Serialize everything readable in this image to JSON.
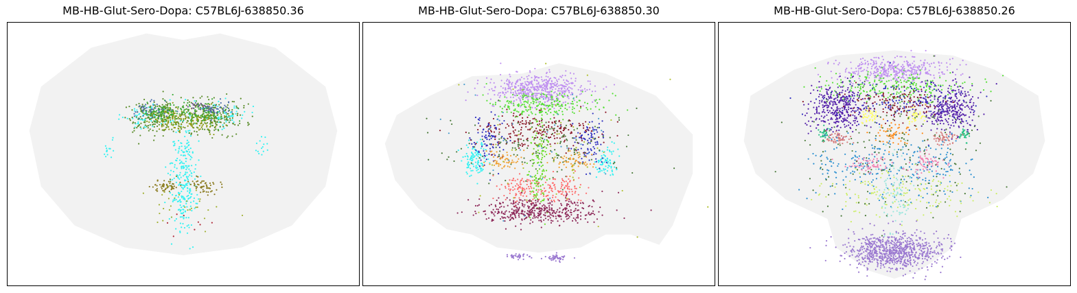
{
  "chart_data": [
    {
      "type": "scatter",
      "title": "MB-HB-Glut-Sero-Dopa: C57BL6J-638850.36",
      "background_color": "#f2f2f2",
      "xticks": [],
      "yticks": [],
      "outline": [
        [
          -0.92,
          0.18
        ],
        [
          -0.85,
          -0.25
        ],
        [
          -0.65,
          -0.55
        ],
        [
          -0.35,
          -0.72
        ],
        [
          0,
          -0.78
        ],
        [
          0.35,
          -0.72
        ],
        [
          0.65,
          -0.55
        ],
        [
          0.85,
          -0.25
        ],
        [
          0.92,
          0.18
        ],
        [
          0.85,
          0.52
        ],
        [
          0.55,
          0.82
        ],
        [
          0.22,
          0.93
        ],
        [
          0,
          0.88
        ],
        [
          -0.22,
          0.93
        ],
        [
          -0.55,
          0.82
        ],
        [
          -0.85,
          0.52
        ]
      ],
      "clusters": [
        {
          "color": "#33f2f2",
          "center": [
            0.0,
            -0.18
          ],
          "spread": [
            0.04,
            0.22
          ],
          "count": 280
        },
        {
          "color": "#33f2f2",
          "center": [
            -0.22,
            0.3
          ],
          "spread": [
            0.07,
            0.05
          ],
          "count": 60
        },
        {
          "color": "#33f2f2",
          "center": [
            0.24,
            0.3
          ],
          "spread": [
            0.07,
            0.05
          ],
          "count": 60
        },
        {
          "color": "#33f2f2",
          "center": [
            -0.45,
            0.04
          ],
          "spread": [
            0.02,
            0.04
          ],
          "count": 14
        },
        {
          "color": "#33f2f2",
          "center": [
            0.47,
            0.05
          ],
          "spread": [
            0.02,
            0.04
          ],
          "count": 14
        },
        {
          "color": "#5a8c2a",
          "center": [
            -0.16,
            0.29
          ],
          "spread": [
            0.09,
            0.07
          ],
          "count": 190
        },
        {
          "color": "#5a8c2a",
          "center": [
            0.17,
            0.29
          ],
          "spread": [
            0.09,
            0.07
          ],
          "count": 190
        },
        {
          "color": "#8c9a12",
          "center": [
            -0.08,
            0.27
          ],
          "spread": [
            0.06,
            0.05
          ],
          "count": 110
        },
        {
          "color": "#8c9a12",
          "center": [
            0.09,
            0.27
          ],
          "spread": [
            0.06,
            0.05
          ],
          "count": 110
        },
        {
          "color": "#3aaa35",
          "center": [
            -0.13,
            0.32
          ],
          "spread": [
            0.07,
            0.04
          ],
          "count": 90
        },
        {
          "color": "#3aaa35",
          "center": [
            0.13,
            0.32
          ],
          "spread": [
            0.07,
            0.04
          ],
          "count": 90
        },
        {
          "color": "#4d6faa",
          "center": [
            -0.2,
            0.34
          ],
          "spread": [
            0.05,
            0.03
          ],
          "count": 45
        },
        {
          "color": "#4d6faa",
          "center": [
            0.2,
            0.34
          ],
          "spread": [
            0.05,
            0.03
          ],
          "count": 45
        },
        {
          "color": "#6a4c93",
          "center": [
            0.1,
            0.37
          ],
          "spread": [
            0.03,
            0.015
          ],
          "count": 18
        },
        {
          "color": "#8a7a1e",
          "center": [
            -0.11,
            -0.25
          ],
          "spread": [
            0.05,
            0.03
          ],
          "count": 55
        },
        {
          "color": "#8a7a1e",
          "center": [
            0.12,
            -0.25
          ],
          "spread": [
            0.05,
            0.03
          ],
          "count": 55
        },
        {
          "color": "#a0b030",
          "center": [
            0.0,
            -0.42
          ],
          "spread": [
            0.12,
            0.08
          ],
          "count": 30
        },
        {
          "color": "#b02a3a",
          "center": [
            0.0,
            -0.5
          ],
          "spread": [
            0.15,
            0.1
          ],
          "count": 8
        }
      ]
    },
    {
      "type": "scatter",
      "title": "MB-HB-Glut-Sero-Dopa: C57BL6J-638850.30",
      "background_color": "#f2f2f2",
      "xticks": [],
      "yticks": [],
      "outline": [
        [
          -0.92,
          0.08
        ],
        [
          -0.86,
          -0.2
        ],
        [
          -0.72,
          -0.42
        ],
        [
          -0.55,
          -0.58
        ],
        [
          -0.4,
          -0.62
        ],
        [
          -0.25,
          -0.72
        ],
        [
          0,
          -0.76
        ],
        [
          0.25,
          -0.72
        ],
        [
          0.4,
          -0.62
        ],
        [
          0.55,
          -0.62
        ],
        [
          0.72,
          -0.7
        ],
        [
          0.8,
          -0.55
        ],
        [
          0.92,
          -0.15
        ],
        [
          0.92,
          0.15
        ],
        [
          0.7,
          0.45
        ],
        [
          0.4,
          0.62
        ],
        [
          0.12,
          0.7
        ],
        [
          -0.1,
          0.62
        ],
        [
          -0.4,
          0.6
        ],
        [
          -0.65,
          0.45
        ],
        [
          -0.85,
          0.3
        ]
      ],
      "clusters": [
        {
          "color": "#bf8ff0",
          "center": [
            0.0,
            0.5
          ],
          "spread": [
            0.14,
            0.06
          ],
          "count": 520
        },
        {
          "color": "#55e035",
          "center": [
            0.02,
            0.38
          ],
          "spread": [
            0.16,
            0.05
          ],
          "count": 220
        },
        {
          "color": "#33f2f2",
          "center": [
            -0.38,
            -0.05
          ],
          "spread": [
            0.04,
            0.07
          ],
          "count": 110
        },
        {
          "color": "#33f2f2",
          "center": [
            0.4,
            -0.05
          ],
          "spread": [
            0.03,
            0.06
          ],
          "count": 80
        },
        {
          "color": "#2e2ebf",
          "center": [
            -0.3,
            0.1
          ],
          "spread": [
            0.05,
            0.1
          ],
          "count": 90
        },
        {
          "color": "#2e2ebf",
          "center": [
            0.3,
            0.1
          ],
          "spread": [
            0.05,
            0.1
          ],
          "count": 90
        },
        {
          "color": "#8c1a2a",
          "center": [
            0.0,
            0.18
          ],
          "spread": [
            0.18,
            0.07
          ],
          "count": 220
        },
        {
          "color": "#4a7a3a",
          "center": [
            0.0,
            0.05
          ],
          "spread": [
            0.25,
            0.12
          ],
          "count": 160
        },
        {
          "color": "#f0a030",
          "center": [
            -0.2,
            -0.05
          ],
          "spread": [
            0.06,
            0.04
          ],
          "count": 55
        },
        {
          "color": "#f0a030",
          "center": [
            0.2,
            -0.05
          ],
          "spread": [
            0.06,
            0.04
          ],
          "count": 55
        },
        {
          "color": "#ff6b6b",
          "center": [
            -0.12,
            -0.27
          ],
          "spread": [
            0.07,
            0.05
          ],
          "count": 100
        },
        {
          "color": "#ff6b6b",
          "center": [
            0.13,
            -0.27
          ],
          "spread": [
            0.07,
            0.05
          ],
          "count": 100
        },
        {
          "color": "#66dd22",
          "center": [
            0.0,
            -0.12
          ],
          "spread": [
            0.03,
            0.2
          ],
          "count": 130
        },
        {
          "color": "#8e2a5a",
          "center": [
            0.0,
            -0.44
          ],
          "spread": [
            0.18,
            0.05
          ],
          "count": 420
        },
        {
          "color": "#9a78d0",
          "center": [
            -0.12,
            -0.79
          ],
          "spread": [
            0.03,
            0.01
          ],
          "count": 35
        },
        {
          "color": "#9a78d0",
          "center": [
            0.1,
            -0.8
          ],
          "spread": [
            0.03,
            0.012
          ],
          "count": 45
        },
        {
          "color": "#b0c030",
          "center": [
            0.1,
            0.0
          ],
          "spread": [
            0.25,
            0.25
          ],
          "count": 60
        },
        {
          "color": "#4d9fcf",
          "center": [
            -0.05,
            0.05
          ],
          "spread": [
            0.22,
            0.22
          ],
          "count": 40
        }
      ]
    },
    {
      "type": "scatter",
      "title": "MB-HB-Glut-Sero-Dopa: C57BL6J-638850.26",
      "background_color": "#f2f2f2",
      "xticks": [],
      "yticks": [],
      "outline": [
        [
          -0.86,
          0.45
        ],
        [
          -0.9,
          0.1
        ],
        [
          -0.83,
          -0.15
        ],
        [
          -0.65,
          -0.35
        ],
        [
          -0.4,
          -0.5
        ],
        [
          -0.35,
          -0.72
        ],
        [
          -0.15,
          -0.9
        ],
        [
          0,
          -0.96
        ],
        [
          0.15,
          -0.9
        ],
        [
          0.35,
          -0.72
        ],
        [
          0.4,
          -0.5
        ],
        [
          0.65,
          -0.35
        ],
        [
          0.83,
          -0.15
        ],
        [
          0.9,
          0.1
        ],
        [
          0.86,
          0.45
        ],
        [
          0.6,
          0.65
        ],
        [
          0.35,
          0.76
        ],
        [
          0.15,
          0.78
        ],
        [
          0,
          0.8
        ],
        [
          -0.15,
          0.78
        ],
        [
          -0.35,
          0.76
        ],
        [
          -0.6,
          0.65
        ]
      ],
      "clusters": [
        {
          "color": "#bf8ff0",
          "center": [
            0.0,
            0.65
          ],
          "spread": [
            0.16,
            0.05
          ],
          "count": 400
        },
        {
          "color": "#55e035",
          "center": [
            0.0,
            0.52
          ],
          "spread": [
            0.22,
            0.06
          ],
          "count": 250
        },
        {
          "color": "#5522aa",
          "center": [
            -0.34,
            0.36
          ],
          "spread": [
            0.09,
            0.09
          ],
          "count": 360
        },
        {
          "color": "#5522aa",
          "center": [
            0.33,
            0.36
          ],
          "spread": [
            0.08,
            0.09
          ],
          "count": 330
        },
        {
          "color": "#2e2ebf",
          "center": [
            0.0,
            0.4
          ],
          "spread": [
            0.2,
            0.08
          ],
          "count": 140
        },
        {
          "color": "#8c1a2a",
          "center": [
            0.0,
            0.38
          ],
          "spread": [
            0.14,
            0.06
          ],
          "count": 120
        },
        {
          "color": "#ffff66",
          "center": [
            -0.14,
            0.3
          ],
          "spread": [
            0.03,
            0.03
          ],
          "count": 40
        },
        {
          "color": "#ffff66",
          "center": [
            0.14,
            0.3
          ],
          "spread": [
            0.03,
            0.03
          ],
          "count": 40
        },
        {
          "color": "#20c080",
          "center": [
            -0.42,
            0.15
          ],
          "spread": [
            0.015,
            0.03
          ],
          "count": 30
        },
        {
          "color": "#20c080",
          "center": [
            0.42,
            0.15
          ],
          "spread": [
            0.015,
            0.03
          ],
          "count": 30
        },
        {
          "color": "#d47a7a",
          "center": [
            -0.34,
            0.12
          ],
          "spread": [
            0.04,
            0.025
          ],
          "count": 55
        },
        {
          "color": "#d47a7a",
          "center": [
            0.3,
            0.12
          ],
          "spread": [
            0.04,
            0.025
          ],
          "count": 55
        },
        {
          "color": "#ff8c1a",
          "center": [
            0.0,
            0.15
          ],
          "spread": [
            0.06,
            0.05
          ],
          "count": 60
        },
        {
          "color": "#2a8fd0",
          "center": [
            -0.2,
            -0.1
          ],
          "spread": [
            0.15,
            0.12
          ],
          "count": 140
        },
        {
          "color": "#2a8fd0",
          "center": [
            0.2,
            -0.1
          ],
          "spread": [
            0.15,
            0.12
          ],
          "count": 140
        },
        {
          "color": "#f07fb0",
          "center": [
            -0.15,
            -0.08
          ],
          "spread": [
            0.06,
            0.04
          ],
          "count": 60
        },
        {
          "color": "#f07fb0",
          "center": [
            0.2,
            -0.08
          ],
          "spread": [
            0.06,
            0.04
          ],
          "count": 60
        },
        {
          "color": "#ccee66",
          "center": [
            0.0,
            -0.32
          ],
          "spread": [
            0.25,
            0.1
          ],
          "count": 160
        },
        {
          "color": "#99e6dd",
          "center": [
            0.0,
            -0.28
          ],
          "spread": [
            0.05,
            0.2
          ],
          "count": 90
        },
        {
          "color": "#9a78d0",
          "center": [
            0.0,
            -0.75
          ],
          "spread": [
            0.14,
            0.07
          ],
          "count": 800
        },
        {
          "color": "#4a7a3a",
          "center": [
            0.0,
            0.05
          ],
          "spread": [
            0.28,
            0.25
          ],
          "count": 180
        }
      ]
    }
  ]
}
